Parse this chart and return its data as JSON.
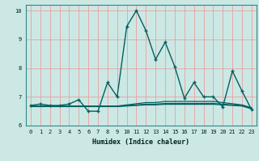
{
  "title": "",
  "xlabel": "Humidex (Indice chaleur)",
  "ylabel": "",
  "background_color": "#cce8e4",
  "grid_color": "#e8a0a0",
  "line_color": "#006060",
  "xlim": [
    -0.5,
    23.5
  ],
  "ylim": [
    6,
    10.2
  ],
  "yticks": [
    6,
    7,
    8,
    9,
    10
  ],
  "xticks": [
    0,
    1,
    2,
    3,
    4,
    5,
    6,
    7,
    8,
    9,
    10,
    11,
    12,
    13,
    14,
    15,
    16,
    17,
    18,
    19,
    20,
    21,
    22,
    23
  ],
  "series": [
    {
      "x": [
        0,
        1,
        2,
        3,
        4,
        5,
        6,
        7,
        8,
        9,
        10,
        11,
        12,
        13,
        14,
        15,
        16,
        17,
        18,
        19,
        20,
        21,
        22,
        23
      ],
      "y": [
        6.7,
        6.75,
        6.7,
        6.7,
        6.75,
        6.9,
        6.5,
        6.5,
        7.5,
        7.0,
        9.45,
        10.0,
        9.3,
        8.3,
        8.9,
        8.05,
        6.95,
        7.5,
        7.0,
        7.0,
        6.65,
        7.9,
        7.2,
        6.55
      ],
      "color": "#006060",
      "linewidth": 1.0,
      "marker": "+",
      "markersize": 3.5
    },
    {
      "x": [
        0,
        1,
        2,
        3,
        4,
        5,
        6,
        7,
        8,
        9,
        10,
        11,
        12,
        13,
        14,
        15,
        16,
        17,
        18,
        19,
        20,
        21,
        22,
        23
      ],
      "y": [
        6.68,
        6.68,
        6.68,
        6.68,
        6.68,
        6.68,
        6.68,
        6.68,
        6.68,
        6.68,
        6.72,
        6.76,
        6.8,
        6.8,
        6.84,
        6.84,
        6.84,
        6.84,
        6.84,
        6.84,
        6.8,
        6.76,
        6.72,
        6.62
      ],
      "color": "#006060",
      "linewidth": 0.9,
      "marker": null,
      "markersize": 0
    },
    {
      "x": [
        0,
        1,
        2,
        3,
        4,
        5,
        6,
        7,
        8,
        9,
        10,
        11,
        12,
        13,
        14,
        15,
        16,
        17,
        18,
        19,
        20,
        21,
        22,
        23
      ],
      "y": [
        6.67,
        6.67,
        6.67,
        6.67,
        6.67,
        6.67,
        6.67,
        6.67,
        6.67,
        6.67,
        6.695,
        6.72,
        6.745,
        6.745,
        6.77,
        6.77,
        6.77,
        6.77,
        6.77,
        6.77,
        6.745,
        6.72,
        6.695,
        6.595
      ],
      "color": "#006060",
      "linewidth": 0.9,
      "marker": null,
      "markersize": 0
    },
    {
      "x": [
        0,
        1,
        2,
        3,
        4,
        5,
        6,
        7,
        8,
        9,
        10,
        11,
        12,
        13,
        14,
        15,
        16,
        17,
        18,
        19,
        20,
        21,
        22,
        23
      ],
      "y": [
        6.66,
        6.66,
        6.66,
        6.66,
        6.66,
        6.66,
        6.66,
        6.66,
        6.66,
        6.66,
        6.68,
        6.7,
        6.72,
        6.72,
        6.74,
        6.74,
        6.74,
        6.74,
        6.74,
        6.74,
        6.72,
        6.7,
        6.68,
        6.58
      ],
      "color": "#006060",
      "linewidth": 0.9,
      "marker": null,
      "markersize": 0
    }
  ]
}
